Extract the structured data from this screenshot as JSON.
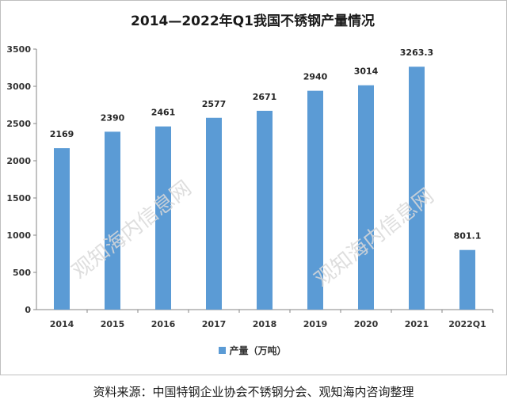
{
  "chart_data": {
    "type": "bar",
    "title": "2014—2022年Q1我国不锈钢产量情况",
    "categories": [
      "2014",
      "2015",
      "2016",
      "2017",
      "2018",
      "2019",
      "2020",
      "2021",
      "2022Q1"
    ],
    "series": [
      {
        "name": "产量（万吨）",
        "values": [
          2169,
          2390,
          2461,
          2577,
          2671,
          2940,
          3014,
          3263.3,
          801.1
        ]
      }
    ],
    "data_labels": [
      "2169",
      "2390",
      "2461",
      "2577",
      "2671",
      "2940",
      "3014",
      "3263.3",
      "801.1"
    ],
    "ylim": [
      0,
      3500
    ],
    "yticks": [
      0,
      500,
      1000,
      1500,
      2000,
      2500,
      3000,
      3500
    ],
    "grid": false,
    "legend_position": "bottom",
    "bar_color": "#5b9bd5"
  },
  "source": "资料来源：中国特钢企业协会不锈钢分会、观知海内咨询整理",
  "watermark": "观知海内信息网"
}
